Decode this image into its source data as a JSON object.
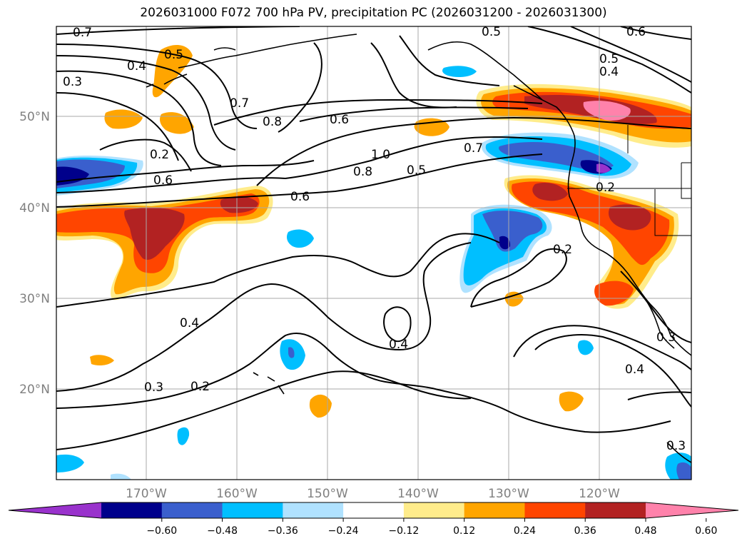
{
  "title": "2026031000 F072 700 hPa PV, precipitation PC (2026031200 - 2026031300)",
  "latitude_labels": [
    "50°N",
    "40°N",
    "30°N",
    "20°N"
  ],
  "longitude_labels": [
    "170°W",
    "160°W",
    "150°W",
    "140°W",
    "130°W",
    "120°W"
  ],
  "colorbar": {
    "tick_labels": [
      "−0.60",
      "−0.48",
      "−0.36",
      "−0.24",
      "−0.12",
      "0.12",
      "0.24",
      "0.36",
      "0.48",
      "0.60"
    ],
    "colors": [
      "#9932cc",
      "#00008b",
      "#3a5fcd",
      "#00bfff",
      "#b0e2ff",
      "#ffffff",
      "#ffec8b",
      "#ffa500",
      "#ff4500",
      "#b22222",
      "#ff82ab"
    ]
  },
  "contour_labels": [
    "0.7",
    "0.5",
    "0.4",
    "0.3",
    "0.7",
    "0.8",
    "0.6",
    "0.2",
    "0.6",
    "0.6",
    "1.0",
    "0.8",
    "0.7",
    "0.5",
    "0.5",
    "0.6",
    "0.5",
    "0.4",
    "0.2",
    "0.2",
    "0.4",
    "0.4",
    "0.3",
    "0.2",
    "0.4",
    "0.3",
    "0.3"
  ]
}
